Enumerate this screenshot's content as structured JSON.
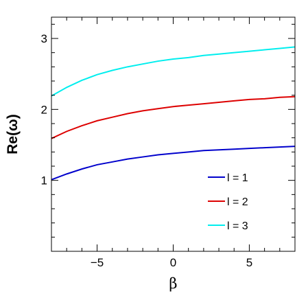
{
  "chart_data": {
    "type": "line",
    "xlabel": "β",
    "ylabel": "Re(ω)",
    "xlim": [
      -8,
      8
    ],
    "ylim": [
      0,
      3.3
    ],
    "x_ticks": [
      -5,
      0,
      5
    ],
    "x_tick_labels": [
      "−5",
      "0",
      "5"
    ],
    "y_ticks": [
      1,
      2,
      3
    ],
    "y_tick_labels": [
      "1",
      "2",
      "3"
    ],
    "grid": false,
    "legend_position": "bottom-right",
    "x": [
      -8,
      -7,
      -6,
      -5,
      -4,
      -3,
      -2,
      -1,
      0,
      1,
      2,
      3,
      4,
      5,
      6,
      7,
      8
    ],
    "series": [
      {
        "name": "l = 1",
        "color": "#0000cc",
        "values": [
          1.01,
          1.09,
          1.16,
          1.22,
          1.26,
          1.3,
          1.33,
          1.36,
          1.38,
          1.4,
          1.42,
          1.43,
          1.44,
          1.45,
          1.46,
          1.47,
          1.48
        ]
      },
      {
        "name": "l = 2",
        "color": "#dd0000",
        "values": [
          1.59,
          1.69,
          1.77,
          1.84,
          1.89,
          1.94,
          1.98,
          2.01,
          2.04,
          2.06,
          2.08,
          2.1,
          2.12,
          2.14,
          2.15,
          2.17,
          2.18
        ]
      },
      {
        "name": "l = 3",
        "color": "#00eeee",
        "values": [
          2.19,
          2.31,
          2.41,
          2.49,
          2.55,
          2.6,
          2.64,
          2.68,
          2.71,
          2.73,
          2.76,
          2.78,
          2.8,
          2.82,
          2.84,
          2.86,
          2.88
        ]
      }
    ]
  }
}
